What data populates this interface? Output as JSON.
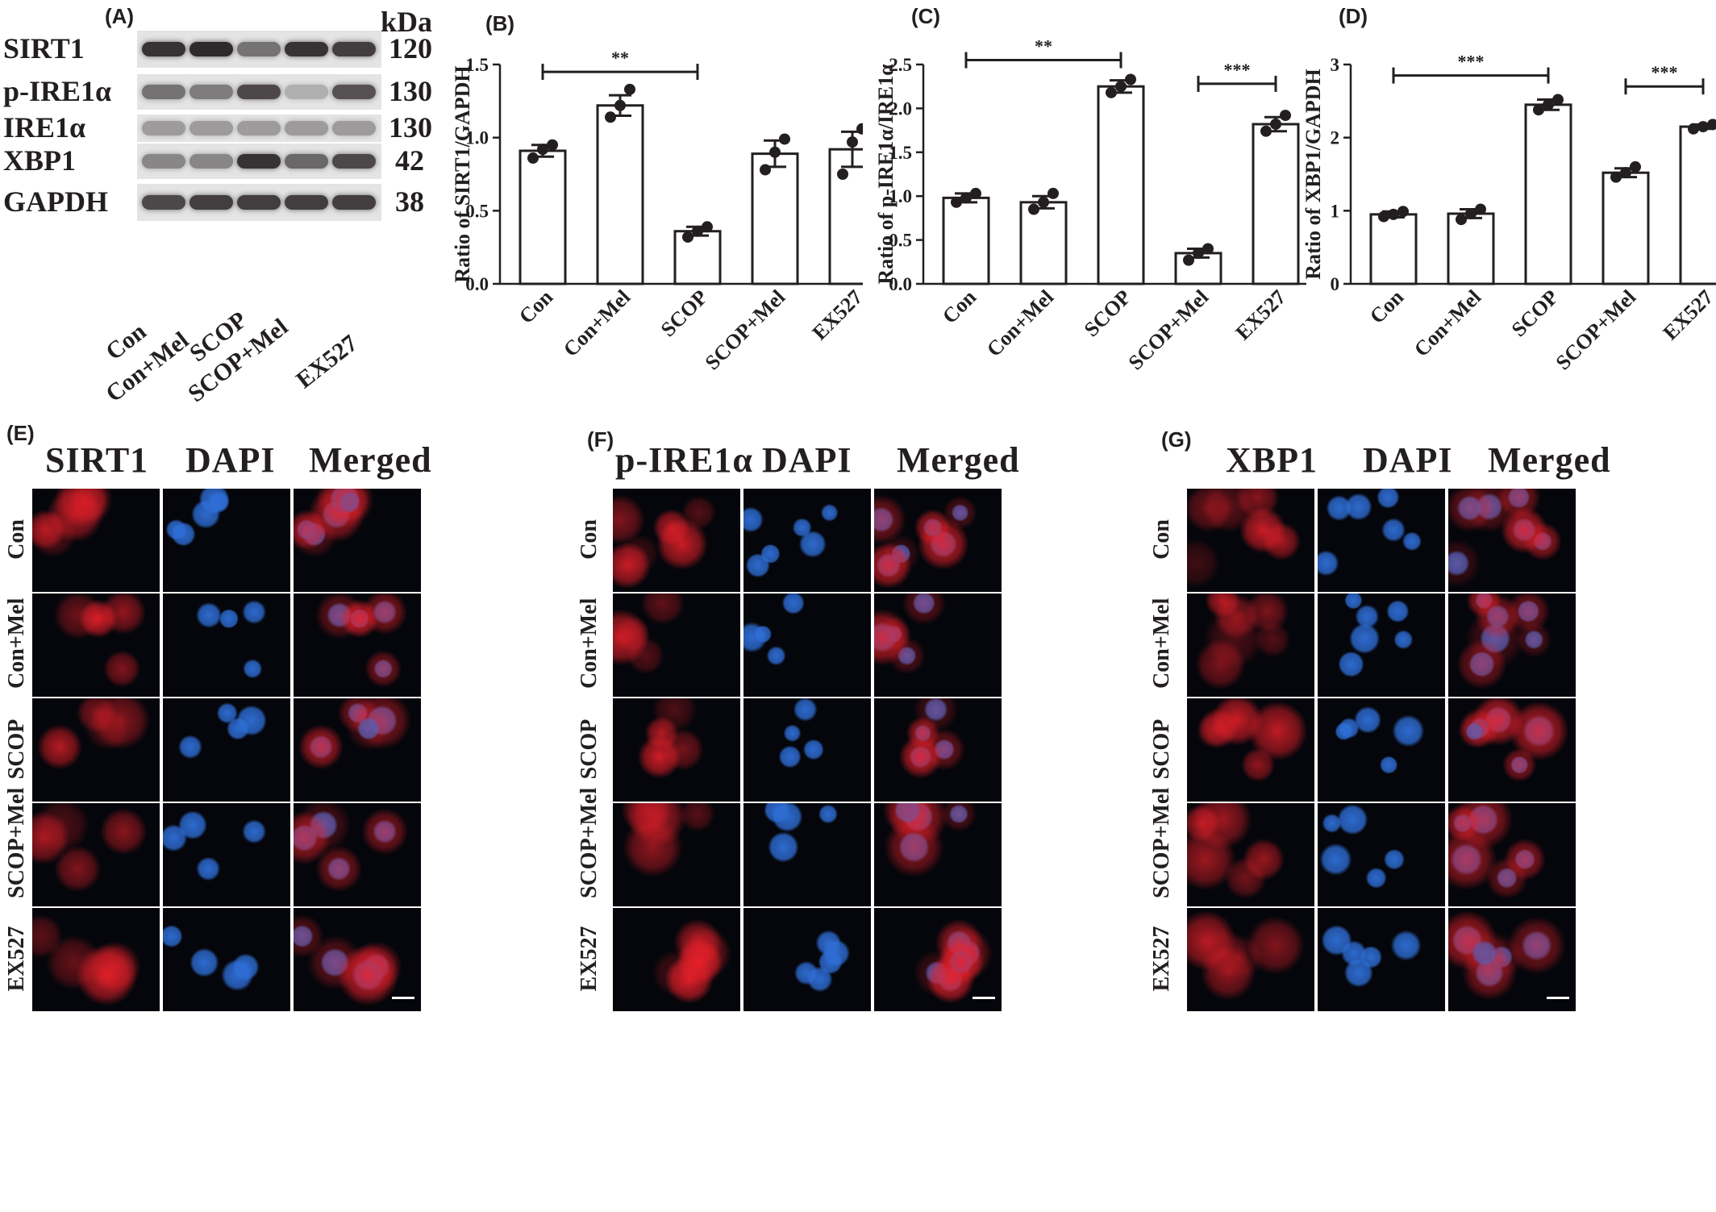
{
  "panels": {
    "A": "(A)",
    "B": "(B)",
    "C": "(C)",
    "D": "(D)",
    "E": "(E)",
    "F": "(F)",
    "G": "(G)"
  },
  "blot": {
    "kda_header": "kDa",
    "proteins": [
      {
        "name": "SIRT1",
        "kda": "120"
      },
      {
        "name": "p-IRE1α",
        "kda": "130"
      },
      {
        "name": "IRE1α",
        "kda": "130"
      },
      {
        "name": "XBP1",
        "kda": "42"
      },
      {
        "name": "GAPDH",
        "kda": "38"
      }
    ],
    "groups": [
      "Con",
      "Con+Mel",
      "SCOP",
      "SCOP+Mel",
      "EX527"
    ]
  },
  "chart_data": [
    {
      "panel": "B",
      "type": "bar",
      "categories": [
        "Con",
        "Con+Mel",
        "SCOP",
        "SCOP+Mel",
        "EX527"
      ],
      "values": [
        0.91,
        1.22,
        0.36,
        0.89,
        0.92
      ],
      "errors": [
        0.04,
        0.07,
        0.03,
        0.09,
        0.12
      ],
      "points": [
        [
          0.86,
          0.92,
          0.95
        ],
        [
          1.14,
          1.22,
          1.33
        ],
        [
          0.32,
          0.36,
          0.39
        ],
        [
          0.78,
          0.9,
          0.99
        ],
        [
          0.75,
          0.97,
          1.06
        ]
      ],
      "ylabel": "Ratio of SIRT1/GAPDH",
      "ylim": [
        0,
        1.5
      ],
      "yticks": [
        "0.0",
        "0.5",
        "1.0",
        "1.5"
      ],
      "significance": [
        {
          "from": 0,
          "to": 2,
          "y": 1.45,
          "label": "**"
        }
      ]
    },
    {
      "panel": "C",
      "type": "bar",
      "categories": [
        "Con",
        "Con+Mel",
        "SCOP",
        "SCOP+Mel",
        "EX527"
      ],
      "values": [
        0.98,
        0.93,
        2.25,
        0.35,
        1.82
      ],
      "errors": [
        0.05,
        0.07,
        0.07,
        0.05,
        0.08
      ],
      "points": [
        [
          0.93,
          0.98,
          1.03
        ],
        [
          0.85,
          0.93,
          1.03
        ],
        [
          2.18,
          2.25,
          2.33
        ],
        [
          0.27,
          0.35,
          0.4
        ],
        [
          1.74,
          1.82,
          1.92
        ]
      ],
      "ylabel": "Ratio of p-IRE1α/IRE1α",
      "ylim": [
        0,
        2.5
      ],
      "yticks": [
        "0.0",
        "0.5",
        "1.0",
        "1.5",
        "2.0",
        "2.5"
      ],
      "significance": [
        {
          "from": 0,
          "to": 2,
          "y": 2.55,
          "label": "**"
        },
        {
          "from": 3,
          "to": 4,
          "y": 2.28,
          "label": "***"
        }
      ]
    },
    {
      "panel": "D",
      "type": "bar",
      "categories": [
        "Con",
        "Con+Mel",
        "SCOP",
        "SCOP+Mel",
        "EX527"
      ],
      "values": [
        0.95,
        0.96,
        2.45,
        1.52,
        2.15
      ],
      "errors": [
        0.04,
        0.06,
        0.07,
        0.06,
        0.03
      ],
      "points": [
        [
          0.92,
          0.95,
          0.99
        ],
        [
          0.88,
          0.96,
          1.02
        ],
        [
          2.38,
          2.45,
          2.52
        ],
        [
          1.46,
          1.52,
          1.6
        ],
        [
          2.12,
          2.15,
          2.18
        ]
      ],
      "ylabel": "Ratio of XBP1/GAPDH",
      "ylim": [
        0,
        3
      ],
      "yticks": [
        "0",
        "1",
        "2",
        "3"
      ],
      "significance": [
        {
          "from": 0,
          "to": 2,
          "y": 2.85,
          "label": "***"
        },
        {
          "from": 3,
          "to": 4,
          "y": 2.7,
          "label": "***"
        }
      ]
    }
  ],
  "if_panels": [
    {
      "panel": "E",
      "headers": [
        "SIRT1",
        "DAPI",
        "Merged"
      ]
    },
    {
      "panel": "F",
      "headers": [
        "p-IRE1α",
        "DAPI",
        "Merged"
      ]
    },
    {
      "panel": "G",
      "headers": [
        "XBP1",
        "DAPI",
        "Merged"
      ]
    }
  ],
  "if_rows": [
    "Con",
    "Con+Mel",
    "SCOP",
    "SCOP+Mel",
    "EX527"
  ],
  "colors": {
    "bars": "#ffffff",
    "bar_stroke": "#231f20",
    "points": "#231f20",
    "red": "#e8202a",
    "blue": "#2f6fd8",
    "background": "#05060b"
  }
}
